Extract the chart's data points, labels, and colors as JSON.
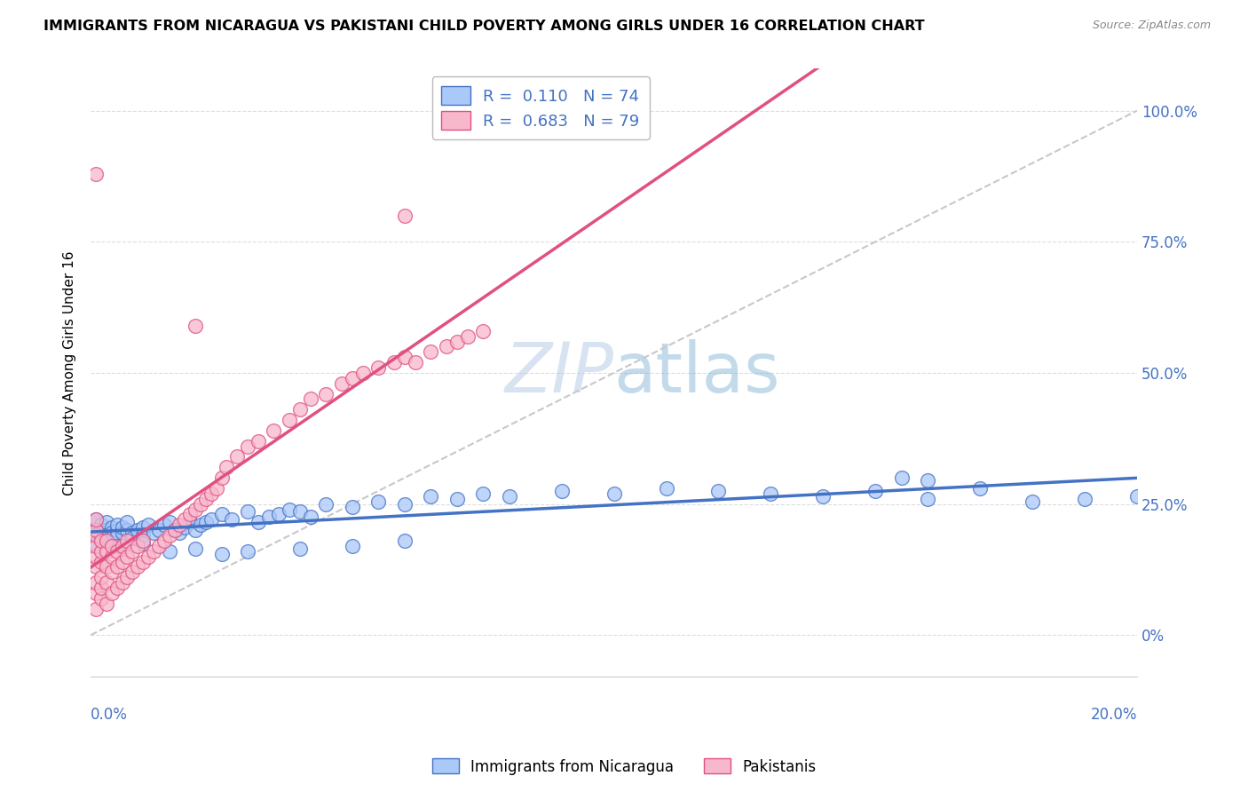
{
  "title": "IMMIGRANTS FROM NICARAGUA VS PAKISTANI CHILD POVERTY AMONG GIRLS UNDER 16 CORRELATION CHART",
  "source": "Source: ZipAtlas.com",
  "ylabel": "Child Poverty Among Girls Under 16",
  "series1_color": "#aac8f8",
  "series2_color": "#f8b8cc",
  "line1_color": "#4472c4",
  "line2_color": "#e05080",
  "ref_line_color": "#c8c8c8",
  "watermark_color": "#c8ddf8",
  "xlim": [
    0.0,
    0.2
  ],
  "ylim": [
    -0.08,
    1.08
  ],
  "y_tick_vals": [
    0.0,
    0.25,
    0.5,
    0.75,
    1.0
  ],
  "y_tick_labels_right": [
    "0%",
    "25.0%",
    "50.0%",
    "75.0%",
    "100.0%"
  ],
  "scatter1": [
    [
      0.001,
      0.195
    ],
    [
      0.001,
      0.205
    ],
    [
      0.001,
      0.215
    ],
    [
      0.001,
      0.175
    ],
    [
      0.001,
      0.22
    ],
    [
      0.002,
      0.2
    ],
    [
      0.002,
      0.185
    ],
    [
      0.002,
      0.21
    ],
    [
      0.002,
      0.195
    ],
    [
      0.003,
      0.2
    ],
    [
      0.003,
      0.215
    ],
    [
      0.003,
      0.19
    ],
    [
      0.004,
      0.205
    ],
    [
      0.004,
      0.195
    ],
    [
      0.004,
      0.185
    ],
    [
      0.005,
      0.2
    ],
    [
      0.005,
      0.21
    ],
    [
      0.005,
      0.19
    ],
    [
      0.006,
      0.195
    ],
    [
      0.006,
      0.205
    ],
    [
      0.007,
      0.2
    ],
    [
      0.007,
      0.215
    ],
    [
      0.008,
      0.195
    ],
    [
      0.008,
      0.185
    ],
    [
      0.009,
      0.2
    ],
    [
      0.01,
      0.205
    ],
    [
      0.01,
      0.19
    ],
    [
      0.011,
      0.21
    ],
    [
      0.012,
      0.195
    ],
    [
      0.013,
      0.2
    ],
    [
      0.014,
      0.21
    ],
    [
      0.015,
      0.215
    ],
    [
      0.016,
      0.2
    ],
    [
      0.017,
      0.195
    ],
    [
      0.018,
      0.205
    ],
    [
      0.019,
      0.215
    ],
    [
      0.02,
      0.2
    ],
    [
      0.021,
      0.21
    ],
    [
      0.022,
      0.215
    ],
    [
      0.023,
      0.22
    ],
    [
      0.025,
      0.23
    ],
    [
      0.027,
      0.22
    ],
    [
      0.03,
      0.235
    ],
    [
      0.032,
      0.215
    ],
    [
      0.034,
      0.225
    ],
    [
      0.036,
      0.23
    ],
    [
      0.038,
      0.24
    ],
    [
      0.04,
      0.235
    ],
    [
      0.042,
      0.225
    ],
    [
      0.045,
      0.25
    ],
    [
      0.05,
      0.245
    ],
    [
      0.055,
      0.255
    ],
    [
      0.06,
      0.25
    ],
    [
      0.065,
      0.265
    ],
    [
      0.07,
      0.26
    ],
    [
      0.075,
      0.27
    ],
    [
      0.08,
      0.265
    ],
    [
      0.09,
      0.275
    ],
    [
      0.1,
      0.27
    ],
    [
      0.11,
      0.28
    ],
    [
      0.12,
      0.275
    ],
    [
      0.13,
      0.27
    ],
    [
      0.14,
      0.265
    ],
    [
      0.15,
      0.275
    ],
    [
      0.16,
      0.26
    ],
    [
      0.005,
      0.17
    ],
    [
      0.01,
      0.175
    ],
    [
      0.015,
      0.16
    ],
    [
      0.02,
      0.165
    ],
    [
      0.025,
      0.155
    ],
    [
      0.03,
      0.16
    ],
    [
      0.04,
      0.165
    ],
    [
      0.05,
      0.17
    ],
    [
      0.06,
      0.18
    ],
    [
      0.18,
      0.255
    ],
    [
      0.19,
      0.26
    ],
    [
      0.2,
      0.265
    ],
    [
      0.17,
      0.28
    ],
    [
      0.16,
      0.295
    ],
    [
      0.155,
      0.3
    ]
  ],
  "scatter2": [
    [
      0.001,
      0.05
    ],
    [
      0.001,
      0.08
    ],
    [
      0.001,
      0.1
    ],
    [
      0.001,
      0.13
    ],
    [
      0.001,
      0.15
    ],
    [
      0.001,
      0.17
    ],
    [
      0.001,
      0.19
    ],
    [
      0.001,
      0.2
    ],
    [
      0.001,
      0.22
    ],
    [
      0.002,
      0.07
    ],
    [
      0.002,
      0.09
    ],
    [
      0.002,
      0.11
    ],
    [
      0.002,
      0.14
    ],
    [
      0.002,
      0.16
    ],
    [
      0.002,
      0.18
    ],
    [
      0.003,
      0.06
    ],
    [
      0.003,
      0.1
    ],
    [
      0.003,
      0.13
    ],
    [
      0.003,
      0.16
    ],
    [
      0.003,
      0.18
    ],
    [
      0.004,
      0.08
    ],
    [
      0.004,
      0.12
    ],
    [
      0.004,
      0.15
    ],
    [
      0.004,
      0.17
    ],
    [
      0.005,
      0.09
    ],
    [
      0.005,
      0.13
    ],
    [
      0.005,
      0.16
    ],
    [
      0.006,
      0.1
    ],
    [
      0.006,
      0.14
    ],
    [
      0.006,
      0.17
    ],
    [
      0.007,
      0.11
    ],
    [
      0.007,
      0.15
    ],
    [
      0.007,
      0.18
    ],
    [
      0.008,
      0.12
    ],
    [
      0.008,
      0.16
    ],
    [
      0.009,
      0.13
    ],
    [
      0.009,
      0.17
    ],
    [
      0.01,
      0.14
    ],
    [
      0.01,
      0.18
    ],
    [
      0.011,
      0.15
    ],
    [
      0.012,
      0.16
    ],
    [
      0.013,
      0.17
    ],
    [
      0.014,
      0.18
    ],
    [
      0.015,
      0.19
    ],
    [
      0.016,
      0.2
    ],
    [
      0.017,
      0.21
    ],
    [
      0.018,
      0.22
    ],
    [
      0.019,
      0.23
    ],
    [
      0.02,
      0.24
    ],
    [
      0.021,
      0.25
    ],
    [
      0.022,
      0.26
    ],
    [
      0.023,
      0.27
    ],
    [
      0.024,
      0.28
    ],
    [
      0.025,
      0.3
    ],
    [
      0.026,
      0.32
    ],
    [
      0.028,
      0.34
    ],
    [
      0.03,
      0.36
    ],
    [
      0.032,
      0.37
    ],
    [
      0.035,
      0.39
    ],
    [
      0.038,
      0.41
    ],
    [
      0.04,
      0.43
    ],
    [
      0.042,
      0.45
    ],
    [
      0.045,
      0.46
    ],
    [
      0.048,
      0.48
    ],
    [
      0.05,
      0.49
    ],
    [
      0.052,
      0.5
    ],
    [
      0.055,
      0.51
    ],
    [
      0.058,
      0.52
    ],
    [
      0.06,
      0.53
    ],
    [
      0.062,
      0.52
    ],
    [
      0.065,
      0.54
    ],
    [
      0.068,
      0.55
    ],
    [
      0.07,
      0.56
    ],
    [
      0.072,
      0.57
    ],
    [
      0.075,
      0.58
    ],
    [
      0.02,
      0.59
    ],
    [
      0.06,
      0.8
    ],
    [
      0.001,
      0.88
    ]
  ]
}
